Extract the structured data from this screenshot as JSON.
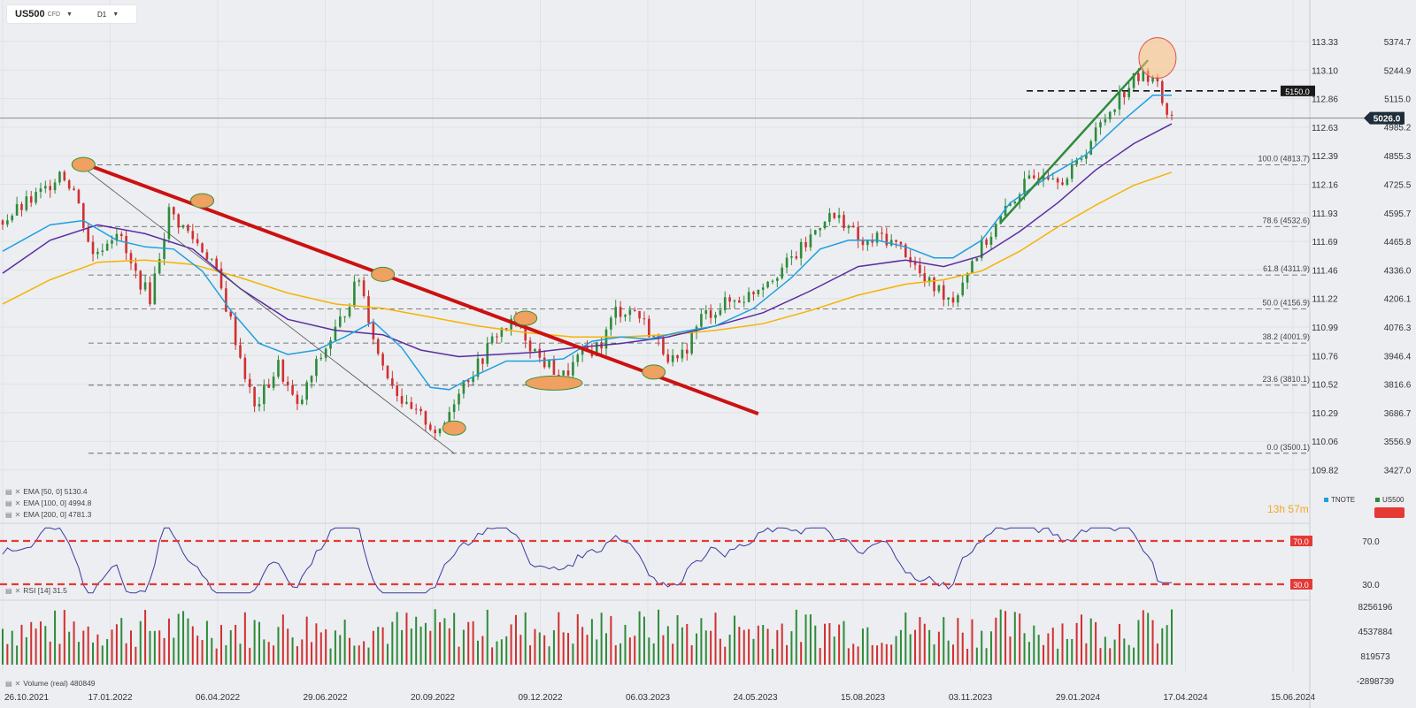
{
  "instrument": {
    "symbol": "US500",
    "type": "CFD",
    "timeframe": "D1"
  },
  "indicators": {
    "ema50": "EMA [50, 0]  5130.4",
    "ema100": "EMA [100, 0]  4994.8",
    "ema200": "EMA [200, 0]  4781.3",
    "rsi": "RSI [14]  31.5",
    "volume": "Volume (real)  480849"
  },
  "timer": {
    "hours": "13",
    "h": "h",
    "minutes": "57",
    "m": "m"
  },
  "compare": {
    "tnote": "TNOTE",
    "us500": "US500"
  },
  "colors": {
    "ema50": "#1ea0e0",
    "ema100": "#5b2ca0",
    "ema200": "#f5b400",
    "trend_red": "#cc1111",
    "trend_green": "#2e8b3a",
    "rsi_line": "#3a3a9e",
    "rsi_level": "#e53935",
    "up_candle": "#2e8b3a",
    "down_candle": "#d03030",
    "marker_fill": "#f0a060"
  },
  "chart_data": {
    "type": "candlestick",
    "x_ticks": [
      "26.10.2021",
      "17.01.2022",
      "06.04.2022",
      "29.06.2022",
      "20.09.2022",
      "09.12.2022",
      "06.03.2023",
      "24.05.2023",
      "15.08.2023",
      "03.11.2023",
      "29.01.2024",
      "17.04.2024",
      "15.06.2024"
    ],
    "price_ticks": [
      "5374.7",
      "5244.9",
      "5115.0",
      "4985.2",
      "4855.3",
      "4725.5",
      "4595.7",
      "4465.8",
      "4336.0",
      "4206.1",
      "4076.3",
      "3946.4",
      "3816.6",
      "3686.7",
      "3556.9",
      "3427.0"
    ],
    "secondary_ticks": [
      "113.33",
      "113.10",
      "112.86",
      "112.63",
      "112.39",
      "112.16",
      "111.93",
      "111.69",
      "111.46",
      "111.22",
      "110.99",
      "110.76",
      "110.52",
      "110.29",
      "110.06",
      "109.82"
    ],
    "current_price": "5026.0",
    "level_label": "5150.0",
    "fib_levels": [
      {
        "label": "100.0 (4813.7)",
        "value": 4813.7
      },
      {
        "label": "78.6 (4532.6)",
        "value": 4532.6
      },
      {
        "label": "61.8 (4311.9)",
        "value": 4311.9
      },
      {
        "label": "50.0 (4156.9)",
        "value": 4156.9
      },
      {
        "label": "38.2 (4001.9)",
        "value": 4001.9
      },
      {
        "label": "23.6 (3810.1)",
        "value": 3810.1
      },
      {
        "label": "0.0 (3500.1)",
        "value": 3500.1
      }
    ],
    "close_path": [
      [
        0,
        4560
      ],
      [
        4,
        4620
      ],
      [
        9,
        4700
      ],
      [
        12,
        4790
      ],
      [
        15,
        4700
      ],
      [
        19,
        4400
      ],
      [
        24,
        4520
      ],
      [
        27,
        4350
      ],
      [
        31,
        4210
      ],
      [
        35,
        4600
      ],
      [
        40,
        4480
      ],
      [
        44,
        4380
      ],
      [
        48,
        4100
      ],
      [
        53,
        3700
      ],
      [
        58,
        3900
      ],
      [
        62,
        3700
      ],
      [
        66,
        3900
      ],
      [
        71,
        4100
      ],
      [
        75,
        4300
      ],
      [
        79,
        3950
      ],
      [
        85,
        3700
      ],
      [
        89,
        3650
      ],
      [
        92,
        3580
      ],
      [
        96,
        3800
      ],
      [
        100,
        3900
      ],
      [
        104,
        4050
      ],
      [
        108,
        4100
      ],
      [
        113,
        3930
      ],
      [
        118,
        3850
      ],
      [
        122,
        3950
      ],
      [
        126,
        4000
      ],
      [
        129,
        4150
      ],
      [
        133,
        4150
      ],
      [
        138,
        4000
      ],
      [
        142,
        3900
      ],
      [
        147,
        4120
      ],
      [
        152,
        4180
      ],
      [
        157,
        4220
      ],
      [
        160,
        4280
      ],
      [
        165,
        4360
      ],
      [
        169,
        4450
      ],
      [
        173,
        4580
      ],
      [
        177,
        4560
      ],
      [
        181,
        4440
      ],
      [
        185,
        4490
      ],
      [
        190,
        4420
      ],
      [
        194,
        4280
      ],
      [
        198,
        4230
      ],
      [
        200,
        4200
      ],
      [
        204,
        4380
      ],
      [
        208,
        4500
      ],
      [
        214,
        4700
      ],
      [
        219,
        4790
      ],
      [
        224,
        4750
      ],
      [
        230,
        4960
      ],
      [
        234,
        5100
      ],
      [
        238,
        5200
      ],
      [
        242,
        5230
      ],
      [
        244,
        5100
      ],
      [
        246,
        5026
      ]
    ],
    "ema50_path": [
      [
        0,
        4420
      ],
      [
        10,
        4540
      ],
      [
        17,
        4560
      ],
      [
        24,
        4470
      ],
      [
        30,
        4440
      ],
      [
        36,
        4430
      ],
      [
        42,
        4330
      ],
      [
        48,
        4150
      ],
      [
        54,
        4000
      ],
      [
        60,
        3950
      ],
      [
        66,
        3970
      ],
      [
        72,
        4030
      ],
      [
        78,
        4100
      ],
      [
        84,
        3980
      ],
      [
        90,
        3800
      ],
      [
        94,
        3790
      ],
      [
        100,
        3860
      ],
      [
        106,
        3920
      ],
      [
        112,
        3920
      ],
      [
        118,
        3930
      ],
      [
        124,
        4010
      ],
      [
        130,
        4030
      ],
      [
        136,
        4020
      ],
      [
        142,
        4050
      ],
      [
        150,
        4080
      ],
      [
        158,
        4160
      ],
      [
        166,
        4300
      ],
      [
        172,
        4430
      ],
      [
        178,
        4470
      ],
      [
        184,
        4470
      ],
      [
        190,
        4440
      ],
      [
        196,
        4390
      ],
      [
        200,
        4390
      ],
      [
        206,
        4470
      ],
      [
        212,
        4640
      ],
      [
        220,
        4760
      ],
      [
        228,
        4860
      ],
      [
        236,
        5020
      ],
      [
        242,
        5130
      ],
      [
        246,
        5130
      ]
    ],
    "ema100_path": [
      [
        0,
        4320
      ],
      [
        10,
        4470
      ],
      [
        20,
        4540
      ],
      [
        30,
        4500
      ],
      [
        40,
        4430
      ],
      [
        50,
        4250
      ],
      [
        60,
        4110
      ],
      [
        70,
        4060
      ],
      [
        80,
        4040
      ],
      [
        88,
        3970
      ],
      [
        96,
        3940
      ],
      [
        104,
        3950
      ],
      [
        112,
        3960
      ],
      [
        120,
        3980
      ],
      [
        130,
        4000
      ],
      [
        140,
        4030
      ],
      [
        150,
        4080
      ],
      [
        160,
        4140
      ],
      [
        170,
        4240
      ],
      [
        180,
        4350
      ],
      [
        190,
        4380
      ],
      [
        198,
        4350
      ],
      [
        206,
        4400
      ],
      [
        214,
        4510
      ],
      [
        222,
        4640
      ],
      [
        230,
        4790
      ],
      [
        238,
        4910
      ],
      [
        246,
        5000
      ]
    ],
    "ema200_path": [
      [
        0,
        4180
      ],
      [
        10,
        4290
      ],
      [
        20,
        4370
      ],
      [
        30,
        4380
      ],
      [
        40,
        4360
      ],
      [
        50,
        4300
      ],
      [
        60,
        4230
      ],
      [
        70,
        4180
      ],
      [
        80,
        4160
      ],
      [
        90,
        4120
      ],
      [
        100,
        4080
      ],
      [
        110,
        4050
      ],
      [
        120,
        4030
      ],
      [
        130,
        4030
      ],
      [
        140,
        4040
      ],
      [
        150,
        4060
      ],
      [
        160,
        4090
      ],
      [
        170,
        4150
      ],
      [
        180,
        4220
      ],
      [
        190,
        4270
      ],
      [
        198,
        4290
      ],
      [
        206,
        4330
      ],
      [
        214,
        4420
      ],
      [
        222,
        4530
      ],
      [
        230,
        4630
      ],
      [
        238,
        4720
      ],
      [
        246,
        4780
      ]
    ],
    "trend_red": {
      "from": [
        17,
        4820
      ],
      "to": [
        159,
        3680
      ]
    },
    "trend_green": {
      "from": [
        210,
        4550
      ],
      "to": [
        241,
        5290
      ]
    },
    "thin_line": {
      "from": [
        17,
        4800
      ],
      "to": [
        95,
        3500
      ]
    },
    "markers": [
      [
        17,
        4815
      ],
      [
        42,
        4650
      ],
      [
        80,
        4315
      ],
      [
        110,
        4115
      ],
      [
        116,
        3820
      ],
      [
        137,
        3870
      ],
      [
        95,
        3615
      ]
    ],
    "rsi": {
      "overbought": "70.0",
      "oversold": "30.0",
      "ticks": [
        "70.0",
        "30.0"
      ],
      "last": 31.5
    },
    "volume_ticks": [
      "8256196",
      "4537884",
      "819573",
      "-2898739"
    ]
  }
}
